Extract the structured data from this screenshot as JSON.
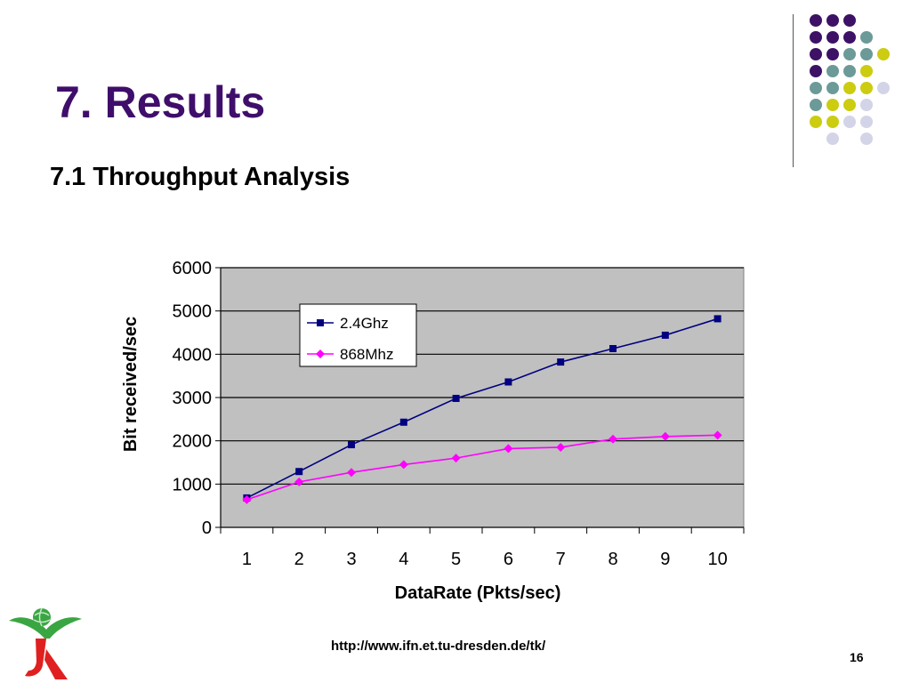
{
  "slide": {
    "title": "7. Results",
    "subtitle": "7.1 Throughput Analysis",
    "url": "http://www.ifn.et.tu-dresden.de/tk/",
    "page_number": "16"
  },
  "decor": {
    "dot_colors": {
      "purple": "#3d1166",
      "teal": "#6b9a98",
      "yellow": "#cccc11",
      "lavender": "#d4d4e8"
    }
  },
  "chart_data": {
    "type": "line",
    "title": "",
    "xlabel": "DataRate (Pkts/sec)",
    "ylabel": "Bit received/sec",
    "categories": [
      "1",
      "2",
      "3",
      "4",
      "5",
      "6",
      "7",
      "8",
      "9",
      "10"
    ],
    "ylim": [
      0,
      6000
    ],
    "yticks": [
      "0",
      "1000",
      "2000",
      "3000",
      "4000",
      "5000",
      "6000"
    ],
    "grid": true,
    "plot_background": "#c0c0c0",
    "legend_position": "top-left",
    "series": [
      {
        "name": "2.4Ghz",
        "color": "#000080",
        "marker": "square",
        "values": [
          680,
          1290,
          1910,
          2430,
          2980,
          3360,
          3820,
          4130,
          4440,
          4820
        ]
      },
      {
        "name": "868Mhz",
        "color": "#ff00ff",
        "marker": "diamond",
        "values": [
          640,
          1050,
          1270,
          1450,
          1600,
          1820,
          1850,
          2040,
          2100,
          2130
        ]
      }
    ]
  }
}
